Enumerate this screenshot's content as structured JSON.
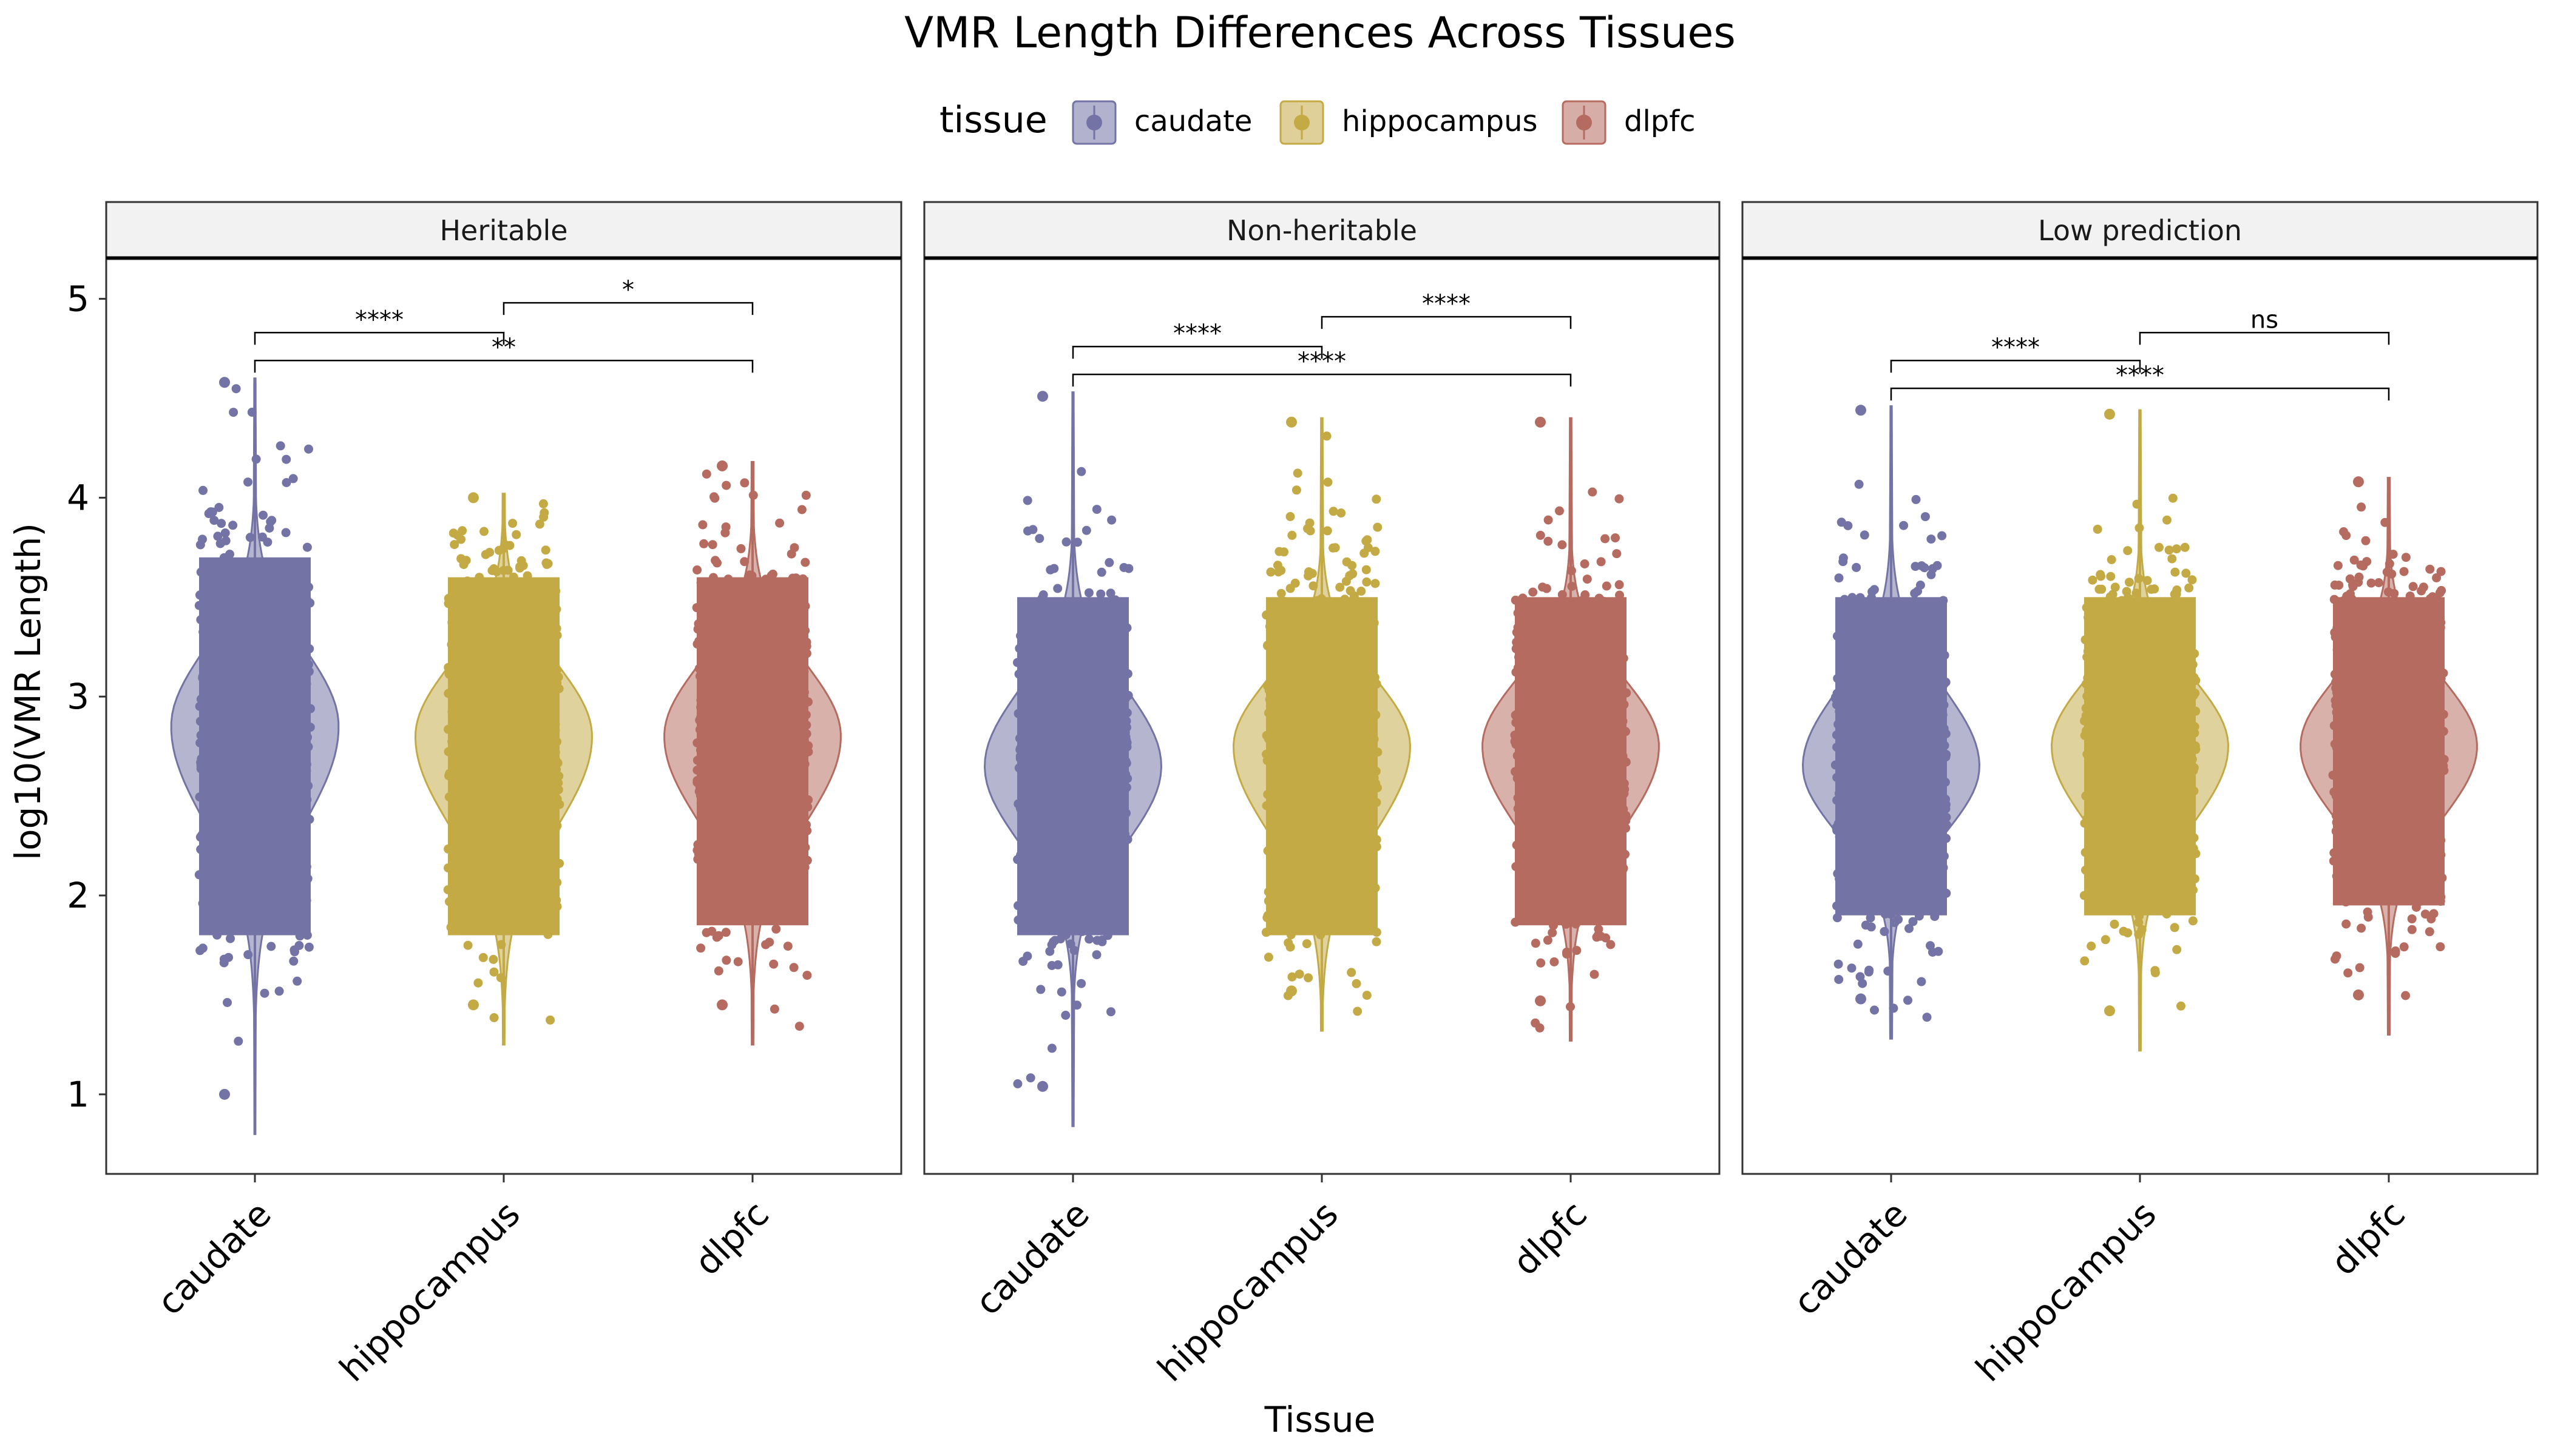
{
  "title": "VMR Length Differences Across Tissues",
  "legend": {
    "title": "tissue",
    "position": "top",
    "items": [
      {
        "label": "caudate",
        "color": "#7373a6"
      },
      {
        "label": "hippocampus",
        "color": "#c4aa45"
      },
      {
        "label": "dlpfc",
        "color": "#b56b5f"
      }
    ]
  },
  "chart_data": {
    "type": "violin",
    "xlabel": "Tissue",
    "ylabel": "log10(VMR Length)",
    "ylim": [
      0.6,
      5.2
    ],
    "yticks": [
      1,
      2,
      3,
      4,
      5
    ],
    "categories": [
      "caudate",
      "hippocampus",
      "dlpfc"
    ],
    "grid": false,
    "panels": [
      {
        "title": "Heritable",
        "series": [
          {
            "name": "caudate",
            "min": 0.8,
            "max": 4.6,
            "median": 2.85,
            "core_low": 1.8,
            "core_high": 3.7,
            "width": 0.92
          },
          {
            "name": "hippocampus",
            "min": 1.25,
            "max": 4.02,
            "median": 2.8,
            "core_low": 1.8,
            "core_high": 3.6,
            "width": 0.97
          },
          {
            "name": "dlpfc",
            "min": 1.25,
            "max": 4.18,
            "median": 2.8,
            "core_low": 1.85,
            "core_high": 3.6,
            "width": 0.97
          }
        ],
        "comparisons": [
          {
            "from": "hippocampus",
            "to": "dlpfc",
            "y": 4.98,
            "label": "*"
          },
          {
            "from": "caudate",
            "to": "hippocampus",
            "y": 4.83,
            "label": "****"
          },
          {
            "from": "caudate",
            "to": "dlpfc",
            "y": 4.69,
            "label": "**"
          }
        ]
      },
      {
        "title": "Non-heritable",
        "series": [
          {
            "name": "caudate",
            "min": 0.84,
            "max": 4.53,
            "median": 2.65,
            "core_low": 1.8,
            "core_high": 3.5,
            "width": 0.97
          },
          {
            "name": "hippocampus",
            "min": 1.32,
            "max": 4.4,
            "median": 2.75,
            "core_low": 1.8,
            "core_high": 3.5,
            "width": 0.97
          },
          {
            "name": "dlpfc",
            "min": 1.27,
            "max": 4.4,
            "median": 2.75,
            "core_low": 1.85,
            "core_high": 3.5,
            "width": 0.97
          }
        ],
        "comparisons": [
          {
            "from": "hippocampus",
            "to": "dlpfc",
            "y": 4.91,
            "label": "****"
          },
          {
            "from": "caudate",
            "to": "hippocampus",
            "y": 4.76,
            "label": "****"
          },
          {
            "from": "caudate",
            "to": "dlpfc",
            "y": 4.62,
            "label": "****"
          }
        ]
      },
      {
        "title": "Low prediction",
        "series": [
          {
            "name": "caudate",
            "min": 1.28,
            "max": 4.46,
            "median": 2.65,
            "core_low": 1.9,
            "core_high": 3.5,
            "width": 0.97
          },
          {
            "name": "hippocampus",
            "min": 1.22,
            "max": 4.44,
            "median": 2.75,
            "core_low": 1.9,
            "core_high": 3.5,
            "width": 0.97
          },
          {
            "name": "dlpfc",
            "min": 1.3,
            "max": 4.1,
            "median": 2.75,
            "core_low": 1.95,
            "core_high": 3.5,
            "width": 0.97
          }
        ],
        "comparisons": [
          {
            "from": "hippocampus",
            "to": "dlpfc",
            "y": 4.83,
            "label": "ns"
          },
          {
            "from": "caudate",
            "to": "hippocampus",
            "y": 4.69,
            "label": "****"
          },
          {
            "from": "caudate",
            "to": "dlpfc",
            "y": 4.55,
            "label": "****"
          }
        ]
      }
    ]
  }
}
